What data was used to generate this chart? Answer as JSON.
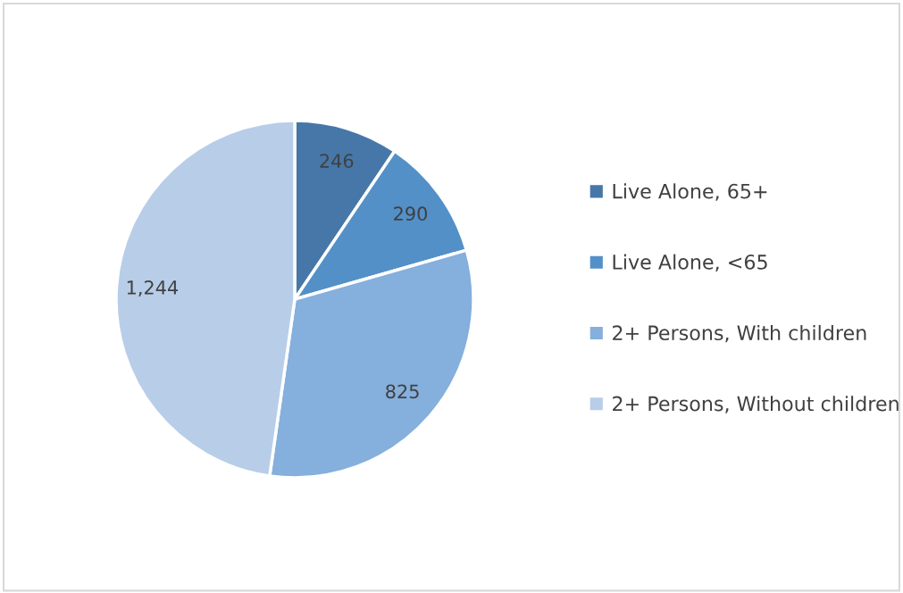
{
  "chart_data": {
    "type": "pie",
    "categories": [
      "Live Alone, 65+",
      "Live Alone, <65",
      "2+ Persons, With children",
      "2+ Persons, Without children"
    ],
    "values": [
      246,
      290,
      825,
      1244
    ],
    "value_labels": [
      "246",
      "290",
      "825",
      "1,244"
    ],
    "colors": [
      "#4677a8",
      "#5390c8",
      "#85afdc",
      "#b8cde8"
    ],
    "legend": "right"
  }
}
